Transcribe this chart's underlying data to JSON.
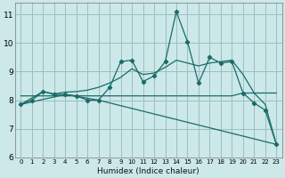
{
  "xlabel": "Humidex (Indice chaleur)",
  "bg_color": "#cce8e8",
  "grid_color": "#9bbfbf",
  "line_color": "#1a6b6b",
  "xlim": [
    -0.5,
    23.5
  ],
  "ylim": [
    6.0,
    11.4
  ],
  "xticks": [
    0,
    1,
    2,
    3,
    4,
    5,
    6,
    7,
    8,
    9,
    10,
    11,
    12,
    13,
    14,
    15,
    16,
    17,
    18,
    19,
    20,
    21,
    22,
    23
  ],
  "yticks": [
    6,
    7,
    8,
    9,
    10,
    11
  ],
  "line1_x": [
    0,
    1,
    2,
    3,
    4,
    5,
    6,
    7,
    8,
    9,
    10,
    11,
    12,
    13,
    14,
    15,
    16,
    17,
    18,
    19,
    20,
    21,
    22,
    23
  ],
  "line1_y": [
    7.85,
    8.0,
    8.3,
    8.2,
    8.2,
    8.15,
    8.0,
    8.0,
    8.45,
    9.35,
    9.4,
    8.65,
    8.85,
    9.35,
    11.1,
    10.05,
    8.6,
    9.5,
    9.3,
    9.35,
    8.25,
    7.9,
    7.65,
    6.45
  ],
  "line2_x": [
    0,
    2,
    3,
    4,
    5,
    6,
    7,
    8,
    9,
    10,
    11,
    12,
    13,
    14,
    15,
    16,
    17,
    18,
    19,
    20,
    21,
    22,
    23
  ],
  "line2_y": [
    7.85,
    8.3,
    8.22,
    8.28,
    8.3,
    8.35,
    8.45,
    8.6,
    8.8,
    9.1,
    8.9,
    8.95,
    9.15,
    9.4,
    9.3,
    9.2,
    9.3,
    9.35,
    9.4,
    8.9,
    8.25,
    7.85,
    6.45
  ],
  "line3_x": [
    0,
    19,
    20,
    23
  ],
  "line3_y": [
    8.15,
    8.15,
    8.25,
    8.25
  ],
  "line4_x": [
    0,
    4,
    7,
    23
  ],
  "line4_y": [
    7.85,
    8.2,
    8.0,
    6.45
  ]
}
